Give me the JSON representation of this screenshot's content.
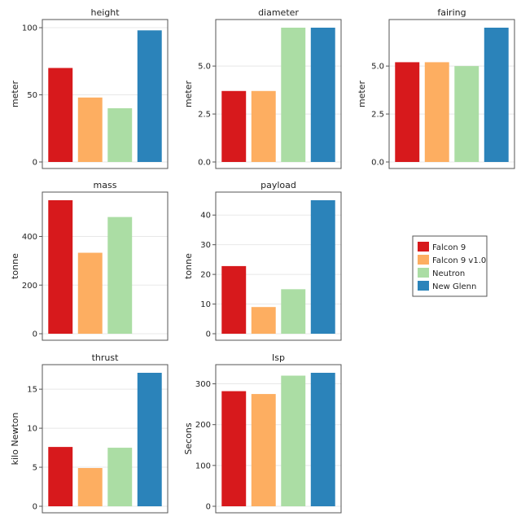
{
  "series_names": [
    "Falcon 9",
    "Falcon 9 v1.0",
    "Neutron",
    "New Glenn"
  ],
  "colors": [
    "#d7191c",
    "#fdae61",
    "#abdda4",
    "#2b83ba"
  ],
  "chart_data": [
    {
      "type": "bar",
      "title": "height",
      "ylabel": "meter",
      "categories": [
        "Falcon 9",
        "Falcon 9 v1.0",
        "Neutron",
        "New Glenn"
      ],
      "values": [
        70,
        48,
        40,
        98
      ],
      "ylim": [
        0,
        100
      ],
      "yticks": [
        0,
        50,
        100
      ],
      "ytick_labels": [
        "0",
        "50",
        "100"
      ]
    },
    {
      "type": "bar",
      "title": "diameter",
      "ylabel": "meter",
      "categories": [
        "Falcon 9",
        "Falcon 9 v1.0",
        "Neutron",
        "New Glenn"
      ],
      "values": [
        3.7,
        3.7,
        7,
        7
      ],
      "ylim": [
        0,
        7
      ],
      "yticks": [
        0,
        2.5,
        5
      ],
      "ytick_labels": [
        "0.0",
        "2.5",
        "5.0"
      ]
    },
    {
      "type": "bar",
      "title": "fairing",
      "ylabel": "meter",
      "categories": [
        "Falcon 9",
        "Falcon 9 v1.0",
        "Neutron",
        "New Glenn"
      ],
      "values": [
        5.2,
        5.2,
        5,
        7
      ],
      "ylim": [
        0,
        7
      ],
      "yticks": [
        0,
        2.5,
        5
      ],
      "ytick_labels": [
        "0.0",
        "2.5",
        "5.0"
      ]
    },
    {
      "type": "bar",
      "title": "mass",
      "ylabel": "tonne",
      "categories": [
        "Falcon 9",
        "Falcon 9 v1.0",
        "Neutron",
        "New Glenn"
      ],
      "values": [
        549,
        333,
        480,
        0
      ],
      "ylim": [
        0,
        549
      ],
      "yticks": [
        0,
        200,
        400
      ],
      "ytick_labels": [
        "0",
        "200",
        "400"
      ]
    },
    {
      "type": "bar",
      "title": "payload",
      "ylabel": "tonne",
      "categories": [
        "Falcon 9",
        "Falcon 9 v1.0",
        "Neutron",
        "New Glenn"
      ],
      "values": [
        22.8,
        9,
        15,
        45
      ],
      "ylim": [
        0,
        45
      ],
      "yticks": [
        0,
        10,
        20,
        30,
        40
      ],
      "ytick_labels": [
        "0",
        "10",
        "20",
        "30",
        "40"
      ]
    },
    {
      "type": "bar",
      "title": "thrust",
      "ylabel": "kilo Newton",
      "categories": [
        "Falcon 9",
        "Falcon 9 v1.0",
        "Neutron",
        "New Glenn"
      ],
      "values": [
        7.6,
        4.9,
        7.5,
        17.1
      ],
      "ylim": [
        0,
        17.1
      ],
      "yticks": [
        0,
        5,
        10,
        15
      ],
      "ytick_labels": [
        "0",
        "5",
        "10",
        "15"
      ]
    },
    {
      "type": "bar",
      "title": "Isp",
      "ylabel": "Secons",
      "categories": [
        "Falcon 9",
        "Falcon 9 v1.0",
        "Neutron",
        "New Glenn"
      ],
      "values": [
        282,
        275,
        320,
        327
      ],
      "ylim": [
        0,
        327
      ],
      "yticks": [
        0,
        100,
        200,
        300
      ],
      "ytick_labels": [
        "0",
        "100",
        "200",
        "300"
      ]
    }
  ],
  "legend": {
    "placement": "right",
    "entries": [
      "Falcon 9",
      "Falcon 9 v1.0",
      "Neutron",
      "New Glenn"
    ]
  }
}
